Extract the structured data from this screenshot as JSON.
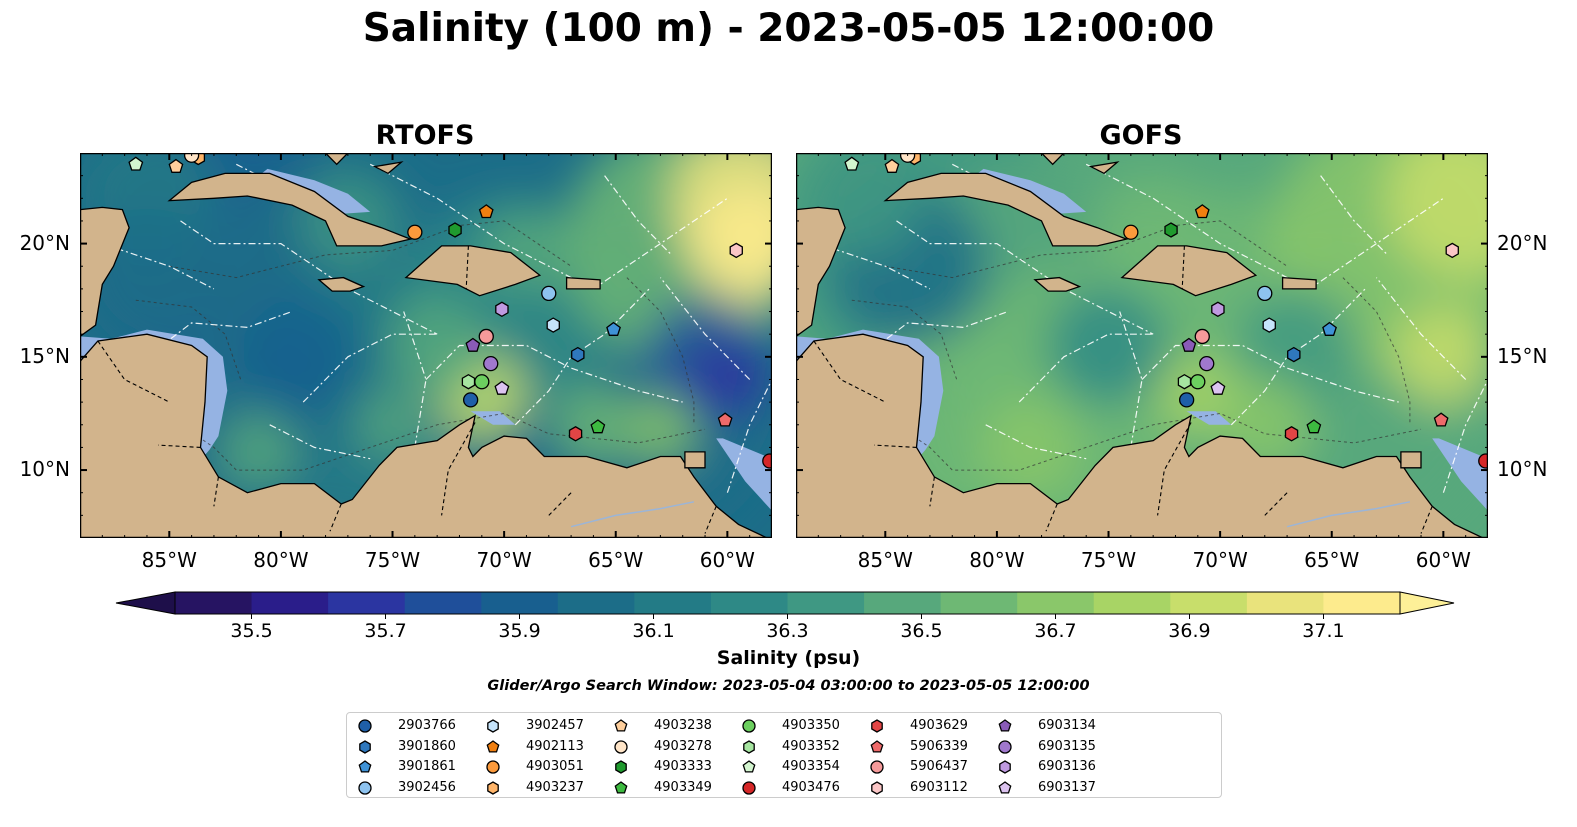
{
  "title": "Salinity (100 m) - 2023-05-05 12:00:00",
  "panels": [
    {
      "id": "rtofs",
      "title": "RTOFS"
    },
    {
      "id": "gofs",
      "title": "GOFS"
    }
  ],
  "axes": {
    "lon_ticks": [
      "85°W",
      "80°W",
      "75°W",
      "70°W",
      "65°W",
      "60°W"
    ],
    "lat_ticks": [
      "20°N",
      "15°N",
      "10°N"
    ]
  },
  "colorbar": {
    "label": "Salinity (psu)",
    "ticks": [
      "35.5",
      "35.7",
      "35.9",
      "36.1",
      "36.3",
      "36.5",
      "36.7",
      "36.9",
      "37.1"
    ],
    "min": 35.5,
    "max": 37.1,
    "extend": "both",
    "colors": [
      "#261462",
      "#2a1d8a",
      "#2b35a1",
      "#1f4f9a",
      "#185f8f",
      "#1c6d88",
      "#237b86",
      "#2e8986",
      "#3f9883",
      "#57a87c",
      "#6eb874",
      "#8ac76a",
      "#a8d465",
      "#c8de6b",
      "#e9e37c",
      "#fdeb8d"
    ],
    "under_color": "#1e0f4a",
    "over_color": "#fdf098"
  },
  "search_window": "Glider/Argo Search Window: 2023-05-04 03:00:00 to 2023-05-05 12:00:00",
  "map_colors": {
    "land": "#d2b48c",
    "shallow": "#95b3e3",
    "pacific": "#2a1a6b",
    "boundary": "#000000"
  },
  "legend": [
    {
      "id": "2903766",
      "marker": "circle",
      "color": "#1f5fa8"
    },
    {
      "id": "3901860",
      "marker": "hexagon",
      "color": "#2f78bd"
    },
    {
      "id": "3901861",
      "marker": "pentagon",
      "color": "#3f92d6"
    },
    {
      "id": "3902456",
      "marker": "circle",
      "color": "#8ec3ef"
    },
    {
      "id": "3902457",
      "marker": "hexagon",
      "color": "#c6e4fb"
    },
    {
      "id": "4902113",
      "marker": "pentagon",
      "color": "#f07f10"
    },
    {
      "id": "4903051",
      "marker": "circle",
      "color": "#fb9a3c"
    },
    {
      "id": "4903237",
      "marker": "hexagon",
      "color": "#ffb56a"
    },
    {
      "id": "4903238",
      "marker": "pentagon",
      "color": "#ffcf9c"
    },
    {
      "id": "4903278",
      "marker": "circle",
      "color": "#ffe5c8"
    },
    {
      "id": "4903333",
      "marker": "hexagon",
      "color": "#1f9a2e"
    },
    {
      "id": "4903349",
      "marker": "pentagon",
      "color": "#3dba40"
    },
    {
      "id": "4903350",
      "marker": "circle",
      "color": "#6ccf5f"
    },
    {
      "id": "4903352",
      "marker": "hexagon",
      "color": "#a6e5a0"
    },
    {
      "id": "4903354",
      "marker": "pentagon",
      "color": "#d3f5cf"
    },
    {
      "id": "4903476",
      "marker": "circle",
      "color": "#d62728"
    },
    {
      "id": "4903629",
      "marker": "hexagon",
      "color": "#e24545"
    },
    {
      "id": "5906339",
      "marker": "pentagon",
      "color": "#ee6a6a"
    },
    {
      "id": "5906437",
      "marker": "circle",
      "color": "#f59a9a"
    },
    {
      "id": "6903112",
      "marker": "hexagon",
      "color": "#fbc6c6"
    },
    {
      "id": "6903134",
      "marker": "pentagon",
      "color": "#8a5bb8"
    },
    {
      "id": "6903135",
      "marker": "circle",
      "color": "#a078cd"
    },
    {
      "id": "6903136",
      "marker": "hexagon",
      "color": "#bf9ae0"
    },
    {
      "id": "6903137",
      "marker": "pentagon",
      "color": "#dcc3f0"
    }
  ],
  "floats": [
    {
      "id": "2903766",
      "lon": -71.5,
      "lat": 13.1
    },
    {
      "id": "3901860",
      "lon": -66.7,
      "lat": 15.1
    },
    {
      "id": "3901861",
      "lon": -65.1,
      "lat": 16.2
    },
    {
      "id": "3902456",
      "lon": -68.0,
      "lat": 17.8
    },
    {
      "id": "3902457",
      "lon": -67.8,
      "lat": 16.4
    },
    {
      "id": "4902113",
      "lon": -70.8,
      "lat": 21.4
    },
    {
      "id": "4903051",
      "lon": -74.0,
      "lat": 20.5
    },
    {
      "id": "4903237",
      "lon": -83.7,
      "lat": 23.8
    },
    {
      "id": "4903238",
      "lon": -84.7,
      "lat": 23.4
    },
    {
      "id": "4903278",
      "lon": -84.0,
      "lat": 23.9
    },
    {
      "id": "4903333",
      "lon": -72.2,
      "lat": 20.6
    },
    {
      "id": "4903349",
      "lon": -65.8,
      "lat": 11.9
    },
    {
      "id": "4903350",
      "lon": -71.0,
      "lat": 13.9
    },
    {
      "id": "4903352",
      "lon": -71.6,
      "lat": 13.9
    },
    {
      "id": "4903354",
      "lon": -86.5,
      "lat": 23.5
    },
    {
      "id": "4903476",
      "lon": -58.1,
      "lat": 10.4
    },
    {
      "id": "4903629",
      "lon": -66.8,
      "lat": 11.6
    },
    {
      "id": "5906339",
      "lon": -60.1,
      "lat": 12.2
    },
    {
      "id": "5906437",
      "lon": -70.8,
      "lat": 15.9
    },
    {
      "id": "6903112",
      "lon": -59.6,
      "lat": 19.7
    },
    {
      "id": "6903134",
      "lon": -71.4,
      "lat": 15.5
    },
    {
      "id": "6903135",
      "lon": -70.6,
      "lat": 14.7
    },
    {
      "id": "6903136",
      "lon": -70.1,
      "lat": 17.1
    },
    {
      "id": "6903137",
      "lon": -70.1,
      "lat": 13.6
    }
  ]
}
